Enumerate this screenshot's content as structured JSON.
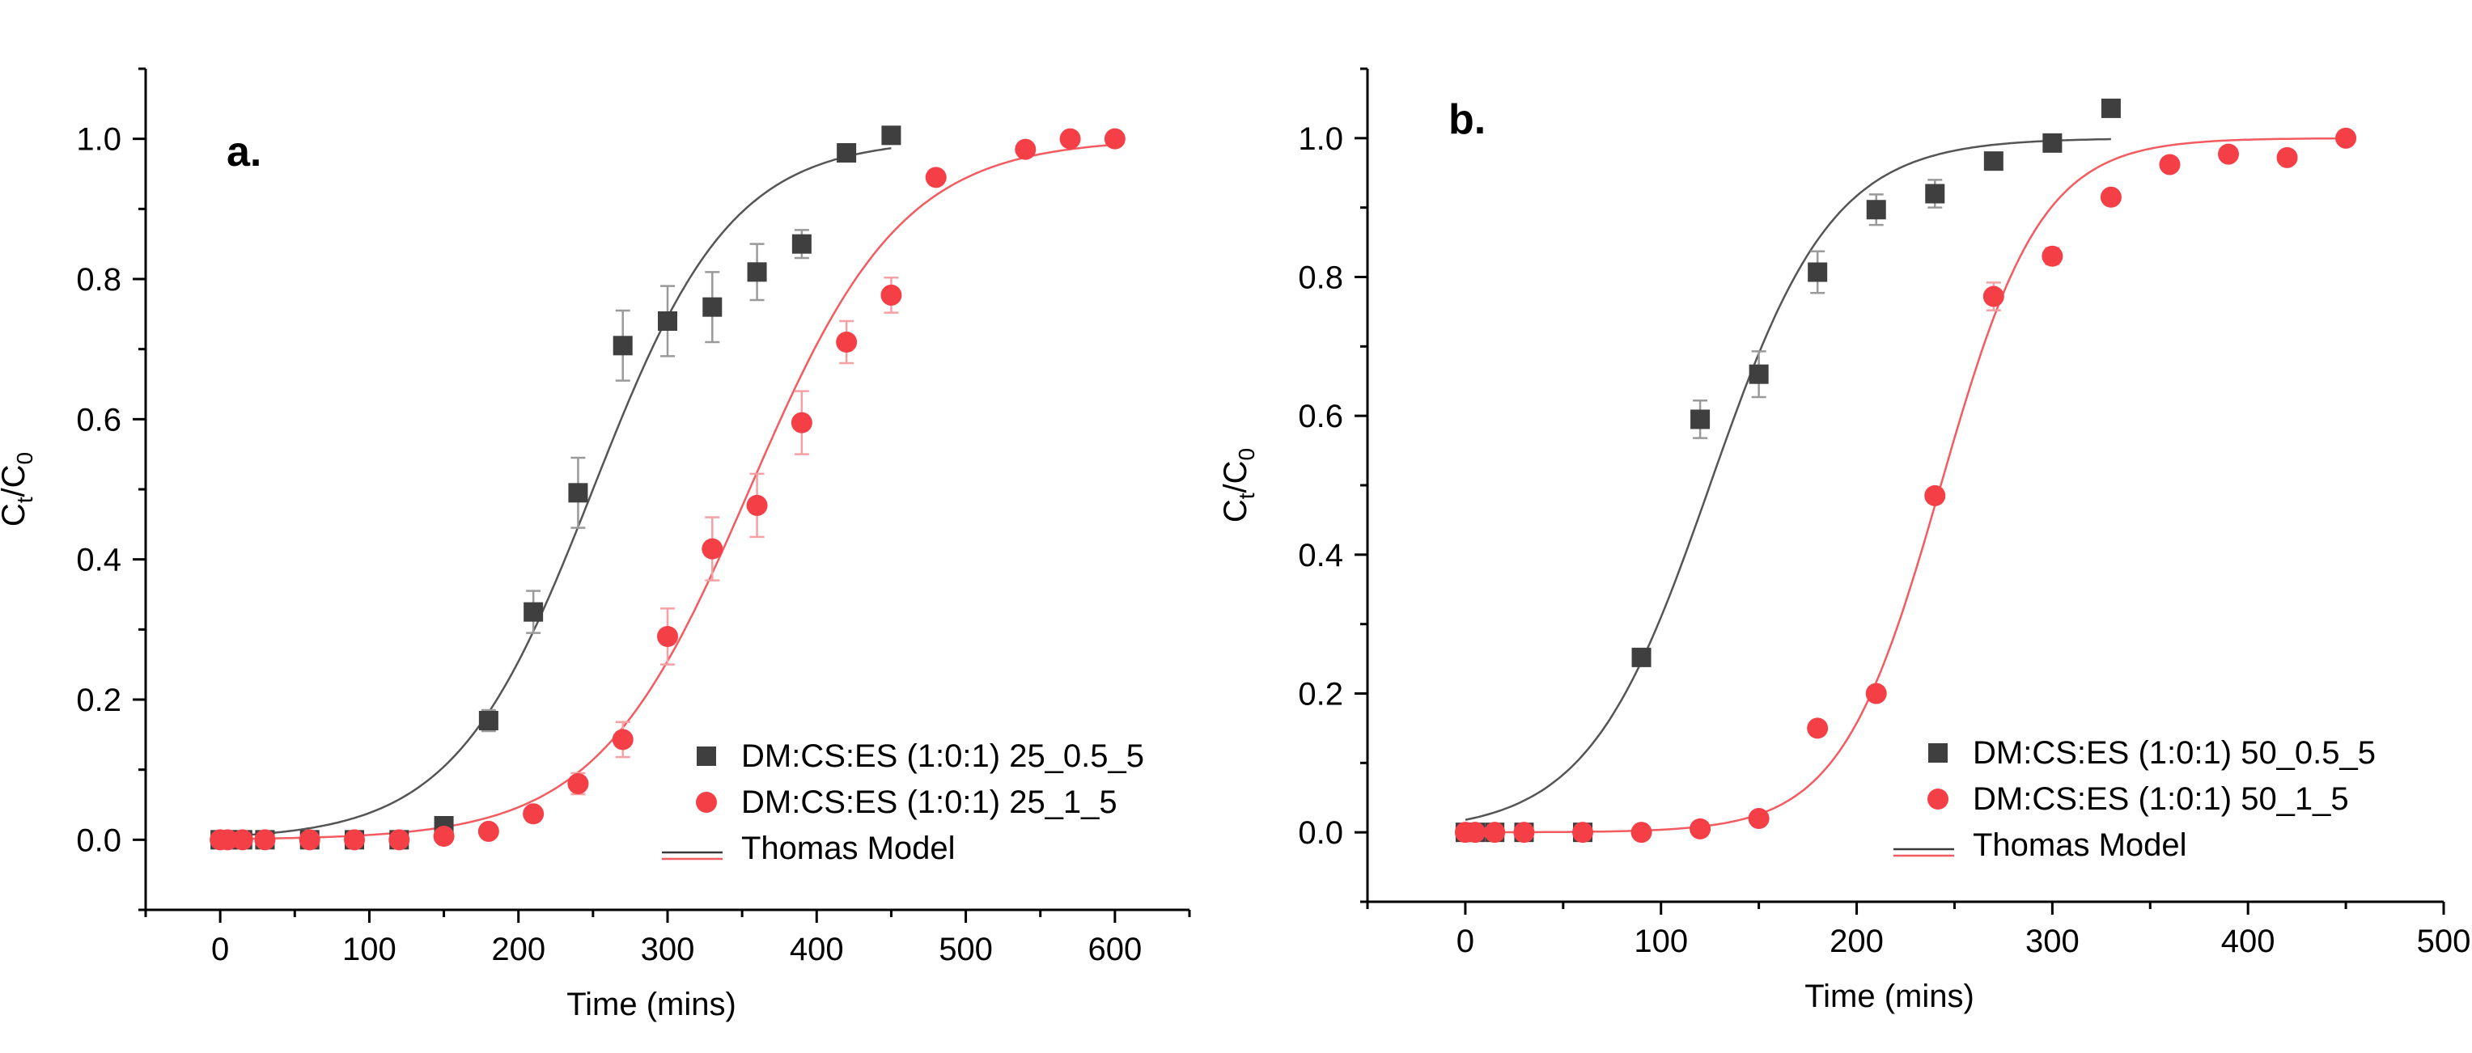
{
  "chart_data": [
    {
      "type": "scatter",
      "panel_label": "a.",
      "xlabel": "Time (mins)",
      "ylabel": "Ct/C0",
      "xlim": [
        -50,
        650
      ],
      "ylim": [
        -0.1,
        1.1
      ],
      "xticks": [
        0,
        100,
        200,
        300,
        400,
        500,
        600
      ],
      "yticks": [
        0.0,
        0.2,
        0.4,
        0.6,
        0.8,
        1.0
      ],
      "legend_position": "lower-right",
      "series": [
        {
          "name": "DM:CS:ES (1:0:1) 25_0.5_5",
          "marker": "square",
          "color": "#3f3f3f",
          "x": [
            0,
            5,
            15,
            30,
            60,
            90,
            120,
            150,
            180,
            210,
            240,
            270,
            300,
            330,
            360,
            390,
            420,
            450
          ],
          "y": [
            0.0,
            0.0,
            0.0,
            0.0,
            0.0,
            0.0,
            0.0,
            0.02,
            0.17,
            0.325,
            0.495,
            0.705,
            0.74,
            0.76,
            0.81,
            0.85,
            0.98,
            1.005
          ],
          "err": [
            0,
            0,
            0,
            0,
            0,
            0,
            0,
            0,
            0.015,
            0.03,
            0.05,
            0.05,
            0.05,
            0.05,
            0.04,
            0.02,
            0,
            0
          ]
        },
        {
          "name": "DM:CS:ES (1:0:1) 25_1_5",
          "marker": "circle",
          "color": "#f43f46",
          "x": [
            0,
            5,
            15,
            30,
            60,
            90,
            120,
            150,
            180,
            210,
            240,
            270,
            300,
            330,
            360,
            390,
            420,
            450,
            480,
            540,
            570,
            600
          ],
          "y": [
            0.0,
            0.0,
            0.0,
            0.0,
            0.0,
            0.0,
            0.0,
            0.005,
            0.012,
            0.037,
            0.08,
            0.143,
            0.29,
            0.415,
            0.477,
            0.595,
            0.71,
            0.777,
            0.945,
            0.985,
            1.0,
            1.0
          ],
          "err": [
            0,
            0,
            0,
            0,
            0,
            0,
            0,
            0,
            0,
            0,
            0.015,
            0.025,
            0.04,
            0.045,
            0.045,
            0.045,
            0.03,
            0.025,
            0,
            0,
            0,
            0
          ]
        },
        {
          "name": "Thomas Model",
          "type": "line",
          "color": "#000000",
          "curves": [
            {
              "color": "#555555",
              "midpoint": 250,
              "slope": 0.0215,
              "xrange": [
                0,
                450
              ]
            },
            {
              "color": "#f45b60",
              "midpoint": 355,
              "slope": 0.0195,
              "xrange": [
                0,
                600
              ]
            }
          ]
        }
      ]
    },
    {
      "type": "scatter",
      "panel_label": "b.",
      "xlabel": "Time (mins)",
      "ylabel": "Ct/C0",
      "xlim": [
        -50,
        500
      ],
      "ylim": [
        -0.1,
        1.1
      ],
      "xticks": [
        0,
        100,
        200,
        300,
        400,
        500
      ],
      "yticks": [
        0.0,
        0.2,
        0.4,
        0.6,
        0.8,
        1.0
      ],
      "legend_position": "lower-right",
      "series": [
        {
          "name": "DM:CS:ES (1:0:1) 50_0.5_5",
          "marker": "square",
          "color": "#3f3f3f",
          "x": [
            0,
            5,
            15,
            30,
            60,
            90,
            120,
            150,
            180,
            210,
            240,
            270,
            300,
            330
          ],
          "y": [
            0.0,
            0.0,
            0.0,
            0.0,
            0.0,
            0.252,
            0.595,
            0.66,
            0.807,
            0.897,
            0.92,
            0.967,
            0.993,
            1.043
          ],
          "err": [
            0,
            0,
            0,
            0,
            0,
            0,
            0.027,
            0.033,
            0.03,
            0.022,
            0.02,
            0,
            0,
            0
          ]
        },
        {
          "name": "DM:CS:ES (1:0:1) 50_1_5",
          "marker": "circle",
          "color": "#f43f46",
          "x": [
            0,
            5,
            15,
            30,
            60,
            90,
            120,
            150,
            180,
            210,
            240,
            270,
            300,
            330,
            360,
            390,
            420,
            450
          ],
          "y": [
            0.0,
            0.0,
            0.0,
            0.0,
            0.0,
            0.0,
            0.005,
            0.02,
            0.15,
            0.2,
            0.485,
            0.772,
            0.83,
            0.915,
            0.962,
            0.977,
            0.972,
            1.0
          ],
          "err": [
            0,
            0,
            0,
            0,
            0,
            0,
            0,
            0,
            0,
            0,
            0,
            0.02,
            0.012,
            0,
            0,
            0,
            0,
            0
          ]
        },
        {
          "name": "Thomas Model",
          "type": "line",
          "color": "#000000",
          "curves": [
            {
              "color": "#555555",
              "midpoint": 125,
              "slope": 0.032,
              "xrange": [
                0,
                330
              ]
            },
            {
              "color": "#f45b60",
              "midpoint": 243,
              "slope": 0.039,
              "xrange": [
                0,
                450
              ]
            }
          ]
        }
      ]
    }
  ]
}
